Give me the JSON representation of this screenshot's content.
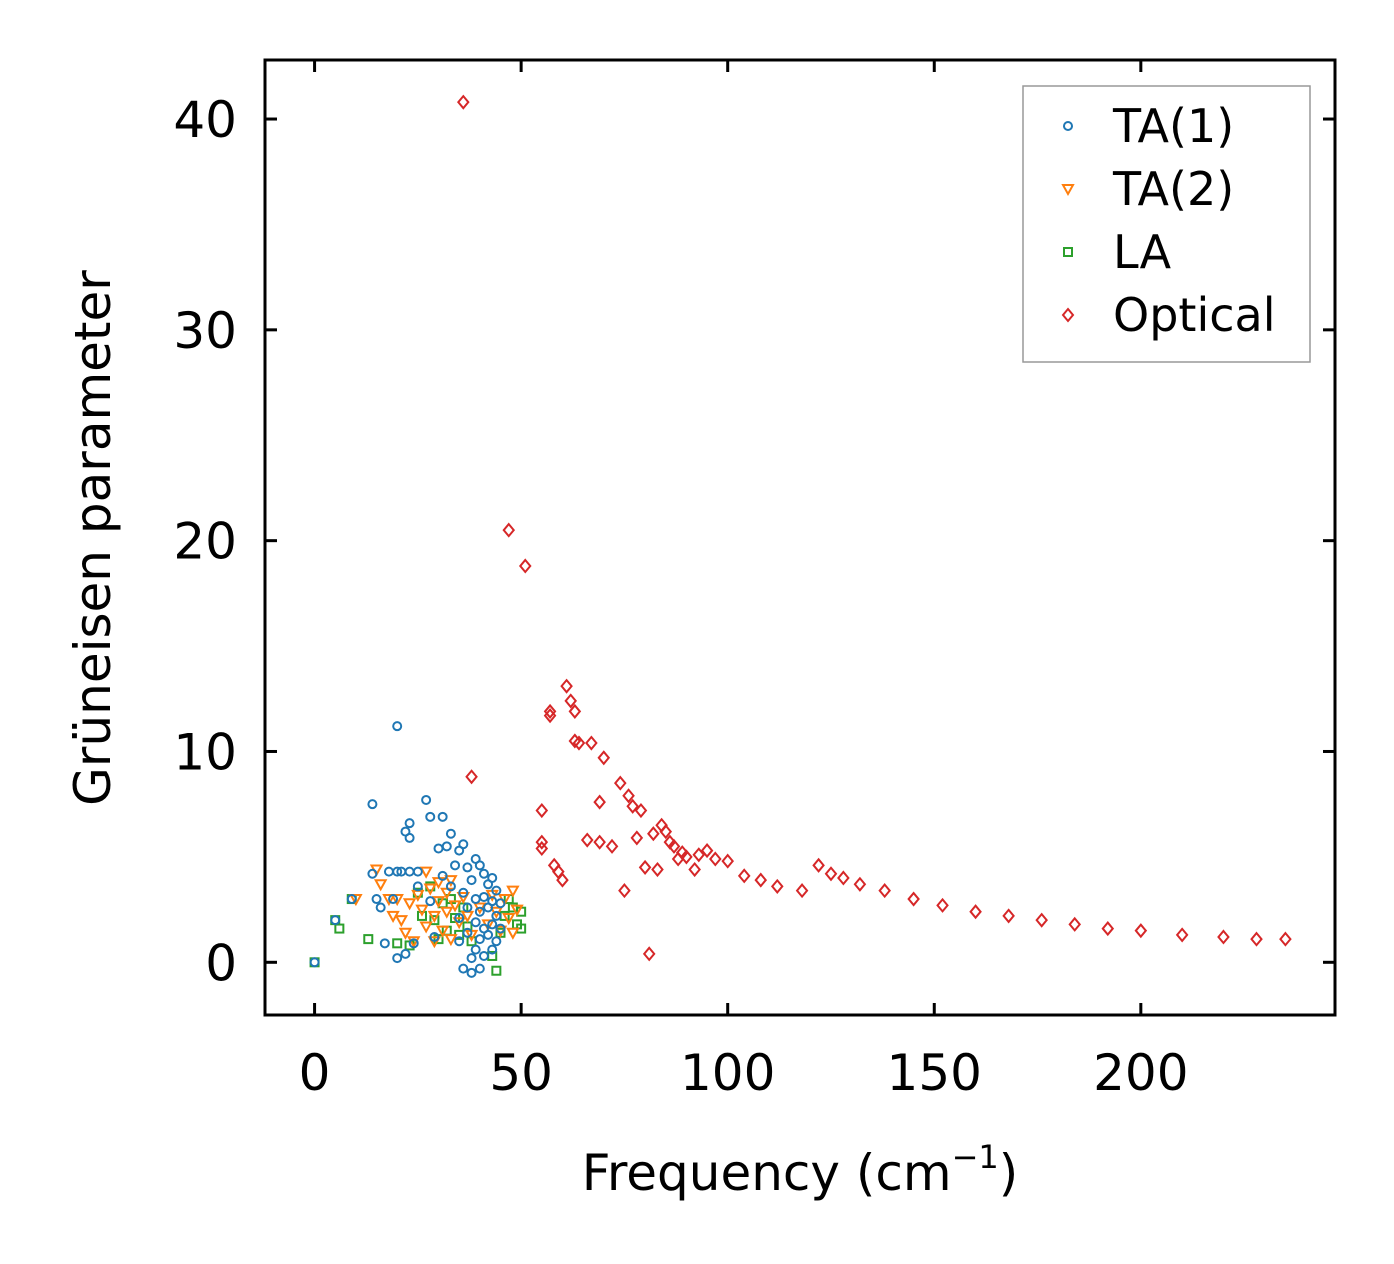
{
  "chart_data": {
    "type": "scatter",
    "title": "",
    "xlabel": "Frequency (cm",
    "xlabel_sup": "−1",
    "xlabel_close": ")",
    "ylabel": "Grüneisen parameter",
    "xlim": [
      -12,
      247
    ],
    "ylim": [
      -2.5,
      42.8
    ],
    "xticks": [
      0,
      50,
      100,
      150,
      200
    ],
    "yticks": [
      0,
      10,
      20,
      30,
      40
    ],
    "legend_position": "top-right",
    "series": [
      {
        "name": "TA(1)",
        "marker": "circle",
        "color": "#1f77b4",
        "points": [
          [
            0,
            0
          ],
          [
            5,
            2
          ],
          [
            9,
            3
          ],
          [
            14,
            7.5
          ],
          [
            14,
            4.2
          ],
          [
            15,
            3
          ],
          [
            16,
            2.6
          ],
          [
            17,
            0.9
          ],
          [
            18,
            4.3
          ],
          [
            19,
            3
          ],
          [
            20,
            4.3
          ],
          [
            20,
            11.2
          ],
          [
            20,
            0.2
          ],
          [
            21,
            4.3
          ],
          [
            22,
            6.2
          ],
          [
            22,
            0.4
          ],
          [
            23,
            4.3
          ],
          [
            23,
            6.6
          ],
          [
            23,
            5.9
          ],
          [
            24,
            0.9
          ],
          [
            25,
            3.6
          ],
          [
            25,
            4.3
          ],
          [
            27,
            7.7
          ],
          [
            28,
            6.9
          ],
          [
            28,
            2.9
          ],
          [
            29,
            1.2
          ],
          [
            30,
            5.4
          ],
          [
            31,
            6.9
          ],
          [
            31,
            4.1
          ],
          [
            32,
            5.5
          ],
          [
            33,
            6.1
          ],
          [
            33,
            3.6
          ],
          [
            34,
            4.6
          ],
          [
            35,
            5.3
          ],
          [
            35,
            2.1
          ],
          [
            35,
            1.0
          ],
          [
            36,
            3.3
          ],
          [
            36,
            5.6
          ],
          [
            36,
            -0.3
          ],
          [
            37,
            4.5
          ],
          [
            37,
            2.6
          ],
          [
            37,
            1.4
          ],
          [
            38,
            3.9
          ],
          [
            38,
            0.2
          ],
          [
            38,
            -0.5
          ],
          [
            39,
            4.9
          ],
          [
            39,
            3.0
          ],
          [
            39,
            1.9
          ],
          [
            39,
            0.6
          ],
          [
            40,
            4.6
          ],
          [
            40,
            2.4
          ],
          [
            40,
            1.1
          ],
          [
            40,
            -0.3
          ],
          [
            41,
            4.2
          ],
          [
            41,
            3.1
          ],
          [
            41,
            1.6
          ],
          [
            41,
            0.3
          ],
          [
            42,
            3.7
          ],
          [
            42,
            2.6
          ],
          [
            42,
            1.3
          ],
          [
            43,
            4.0
          ],
          [
            43,
            2.9
          ],
          [
            43,
            1.8
          ],
          [
            43,
            0.6
          ],
          [
            44,
            3.4
          ],
          [
            44,
            2.2
          ],
          [
            44,
            1.0
          ],
          [
            45,
            2.8
          ],
          [
            45,
            1.6
          ]
        ]
      },
      {
        "name": "TA(2)",
        "marker": "triangle-down",
        "color": "#ff7f0e",
        "points": [
          [
            10,
            3
          ],
          [
            15,
            4.4
          ],
          [
            16,
            3.7
          ],
          [
            18,
            3.0
          ],
          [
            19,
            2.2
          ],
          [
            20,
            3.0
          ],
          [
            21,
            2.0
          ],
          [
            22,
            1.4
          ],
          [
            23,
            2.8
          ],
          [
            24,
            1.0
          ],
          [
            25,
            3.2
          ],
          [
            26,
            2.5
          ],
          [
            27,
            4.3
          ],
          [
            27,
            1.7
          ],
          [
            28,
            3.5
          ],
          [
            29,
            2.2
          ],
          [
            29,
            1.0
          ],
          [
            30,
            3.8
          ],
          [
            30,
            2.9
          ],
          [
            31,
            1.5
          ],
          [
            32,
            2.4
          ],
          [
            32,
            3.3
          ],
          [
            33,
            1.1
          ],
          [
            33,
            3.9
          ],
          [
            34,
            2.7
          ],
          [
            35,
            1.9
          ],
          [
            36,
            3.1
          ],
          [
            37,
            2.2
          ],
          [
            38,
            1.3
          ],
          [
            40,
            2.6
          ],
          [
            42,
            1.8
          ],
          [
            43,
            3.2
          ],
          [
            44,
            2.4
          ],
          [
            45,
            1.5
          ],
          [
            46,
            3.0
          ],
          [
            47,
            2.1
          ],
          [
            48,
            1.4
          ],
          [
            48,
            3.4
          ],
          [
            49,
            2.5
          ]
        ]
      },
      {
        "name": "LA",
        "marker": "square",
        "color": "#2ca02c",
        "points": [
          [
            0,
            0
          ],
          [
            5,
            2
          ],
          [
            6,
            1.6
          ],
          [
            9,
            3
          ],
          [
            13,
            1.1
          ],
          [
            20,
            0.9
          ],
          [
            23,
            0.8
          ],
          [
            25,
            3.3
          ],
          [
            26,
            2.2
          ],
          [
            28,
            3.6
          ],
          [
            29,
            2.0
          ],
          [
            30,
            1.1
          ],
          [
            31,
            2.8
          ],
          [
            32,
            1.5
          ],
          [
            33,
            3.0
          ],
          [
            34,
            2.1
          ],
          [
            35,
            1.3
          ],
          [
            36,
            2.6
          ],
          [
            37,
            1.7
          ],
          [
            38,
            1.0
          ],
          [
            43,
            0.3
          ],
          [
            44,
            -0.4
          ],
          [
            45,
            1.4
          ],
          [
            46,
            2.2
          ],
          [
            47,
            3.0
          ],
          [
            48,
            2.6
          ],
          [
            49,
            1.8
          ],
          [
            50,
            2.4
          ],
          [
            50,
            1.6
          ]
        ]
      },
      {
        "name": "Optical",
        "marker": "diamond",
        "color": "#d62728",
        "points": [
          [
            36,
            40.8
          ],
          [
            38,
            8.8
          ],
          [
            47,
            20.5
          ],
          [
            51,
            18.8
          ],
          [
            55,
            7.2
          ],
          [
            55,
            5.7
          ],
          [
            55,
            5.4
          ],
          [
            57,
            11.9
          ],
          [
            57,
            11.7
          ],
          [
            58,
            4.6
          ],
          [
            59,
            4.3
          ],
          [
            60,
            3.9
          ],
          [
            61,
            13.1
          ],
          [
            62,
            12.4
          ],
          [
            63,
            11.9
          ],
          [
            63,
            10.5
          ],
          [
            64,
            10.4
          ],
          [
            66,
            5.8
          ],
          [
            67,
            10.4
          ],
          [
            69,
            5.7
          ],
          [
            69,
            7.6
          ],
          [
            70,
            9.7
          ],
          [
            72,
            5.5
          ],
          [
            74,
            8.5
          ],
          [
            75,
            3.4
          ],
          [
            76,
            7.9
          ],
          [
            77,
            7.4
          ],
          [
            78,
            5.9
          ],
          [
            79,
            7.2
          ],
          [
            80,
            4.5
          ],
          [
            81,
            0.4
          ],
          [
            82,
            6.1
          ],
          [
            83,
            4.4
          ],
          [
            84,
            6.5
          ],
          [
            85,
            6.2
          ],
          [
            86,
            5.7
          ],
          [
            87,
            5.5
          ],
          [
            88,
            4.9
          ],
          [
            89,
            5.2
          ],
          [
            90,
            5.0
          ],
          [
            92,
            4.4
          ],
          [
            93,
            5.1
          ],
          [
            95,
            5.3
          ],
          [
            97,
            4.9
          ],
          [
            100,
            4.8
          ],
          [
            104,
            4.1
          ],
          [
            108,
            3.9
          ],
          [
            112,
            3.6
          ],
          [
            118,
            3.4
          ],
          [
            122,
            4.6
          ],
          [
            125,
            4.2
          ],
          [
            128,
            4.0
          ],
          [
            132,
            3.7
          ],
          [
            138,
            3.4
          ],
          [
            145,
            3.0
          ],
          [
            152,
            2.7
          ],
          [
            160,
            2.4
          ],
          [
            168,
            2.2
          ],
          [
            176,
            2.0
          ],
          [
            184,
            1.8
          ],
          [
            192,
            1.6
          ],
          [
            200,
            1.5
          ],
          [
            210,
            1.3
          ],
          [
            220,
            1.2
          ],
          [
            228,
            1.1
          ],
          [
            235,
            1.1
          ]
        ]
      }
    ]
  }
}
